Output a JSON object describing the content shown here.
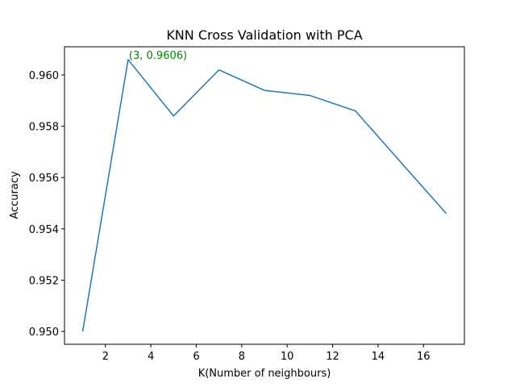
{
  "colors": {
    "line": "#1f77b4",
    "annotation": "#008000"
  },
  "chart_data": {
    "type": "line",
    "title": "KNN Cross Validation with PCA",
    "xlabel": "K(Number of neighbours)",
    "ylabel": "Accuracy",
    "xlim": [
      0.2,
      17.8
    ],
    "ylim": [
      0.9495,
      0.9611
    ],
    "xticks": [
      2,
      4,
      6,
      8,
      10,
      12,
      14,
      16
    ],
    "xtick_labels": [
      "2",
      "4",
      "6",
      "8",
      "10",
      "12",
      "14",
      "16"
    ],
    "yticks": [
      0.95,
      0.952,
      0.954,
      0.956,
      0.958,
      0.96
    ],
    "ytick_labels": [
      "0.950",
      "0.952",
      "0.954",
      "0.956",
      "0.958",
      "0.960"
    ],
    "grid": false,
    "series": [
      {
        "x": [
          1,
          3,
          5,
          7,
          9,
          11,
          13,
          17
        ],
        "y": [
          0.95,
          0.9606,
          0.9584,
          0.9602,
          0.9594,
          0.9592,
          0.9586,
          0.9546
        ]
      }
    ],
    "annotations": [
      {
        "text": "(3, 0.9606)",
        "x": 3,
        "y": 0.9606
      }
    ]
  }
}
